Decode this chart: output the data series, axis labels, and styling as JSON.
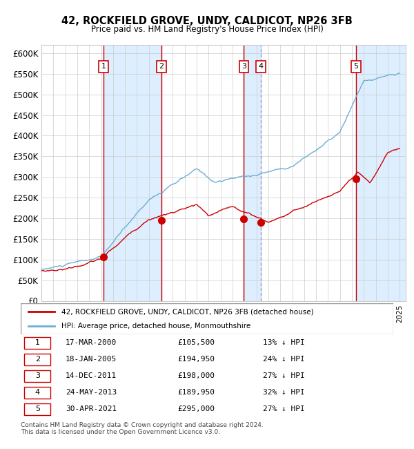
{
  "title1": "42, ROCKFIELD GROVE, UNDY, CALDICOT, NP26 3FB",
  "title2": "Price paid vs. HM Land Registry's House Price Index (HPI)",
  "ylabel": "",
  "xlabel": "",
  "ylim": [
    0,
    620000
  ],
  "yticks": [
    0,
    50000,
    100000,
    150000,
    200000,
    250000,
    300000,
    350000,
    400000,
    450000,
    500000,
    550000,
    600000
  ],
  "ytick_labels": [
    "£0",
    "£50K",
    "£100K",
    "£150K",
    "£200K",
    "£250K",
    "£300K",
    "£350K",
    "£400K",
    "£450K",
    "£500K",
    "£550K",
    "£600K"
  ],
  "hpi_color": "#6baed6",
  "price_color": "#cc0000",
  "sale_marker_color": "#cc0000",
  "vline_color_solid": "#cc0000",
  "vline_color_dashed": "#9999cc",
  "shade_color": "#ddeeff",
  "grid_color": "#cccccc",
  "sale_dates_x": [
    2000.21,
    2005.04,
    2011.95,
    2013.39,
    2021.33
  ],
  "sale_prices": [
    105500,
    194950,
    198000,
    189950,
    295000
  ],
  "sale_labels": [
    "1",
    "2",
    "3",
    "4",
    "5"
  ],
  "sale_line_style": [
    "solid",
    "solid",
    "solid",
    "dashed",
    "solid"
  ],
  "legend_line1": "42, ROCKFIELD GROVE, UNDY, CALDICOT, NP26 3FB (detached house)",
  "legend_line2": "HPI: Average price, detached house, Monmouthshire",
  "table_rows": [
    [
      "1",
      "17-MAR-2000",
      "£105,500",
      "13% ↓ HPI"
    ],
    [
      "2",
      "18-JAN-2005",
      "£194,950",
      "24% ↓ HPI"
    ],
    [
      "3",
      "14-DEC-2011",
      "£198,000",
      "27% ↓ HPI"
    ],
    [
      "4",
      "24-MAY-2013",
      "£189,950",
      "32% ↓ HPI"
    ],
    [
      "5",
      "30-APR-2021",
      "£295,000",
      "27% ↓ HPI"
    ]
  ],
  "footnote": "Contains HM Land Registry data © Crown copyright and database right 2024.\nThis data is licensed under the Open Government Licence v3.0.",
  "background_color": "#ffffff",
  "plot_bg_color": "#ffffff"
}
